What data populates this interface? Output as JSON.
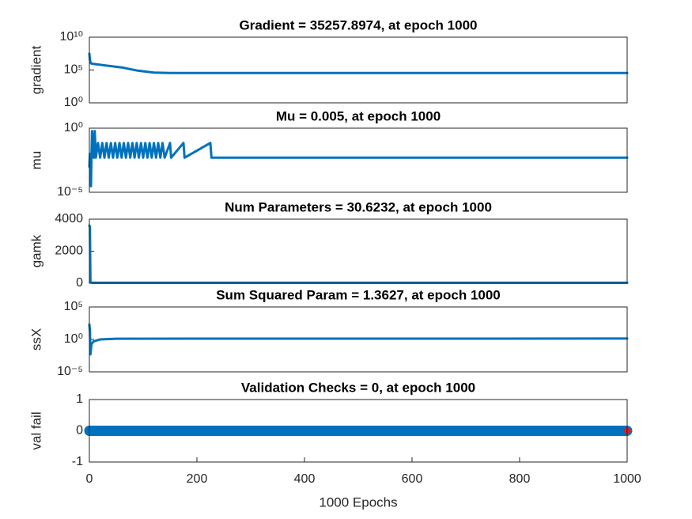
{
  "chart_data": [
    {
      "type": "line",
      "title": "Gradient = 35257.8974, at epoch 1000",
      "ylabel": "gradient",
      "yscale": "log",
      "color": "#0072bd",
      "xlim": [
        0,
        1000
      ],
      "ylim": [
        1,
        10000000000
      ],
      "yticks": [
        {
          "value": 1,
          "label": "10⁰"
        },
        {
          "value": 100000,
          "label": "10⁵"
        },
        {
          "value": 10000000000,
          "label": "10¹⁰"
        }
      ],
      "x": [
        0,
        1,
        3,
        10,
        30,
        60,
        90,
        120,
        150,
        1000
      ],
      "values": [
        30000000,
        3000000,
        1000000,
        800000,
        500000,
        250000,
        80000,
        40000,
        35500,
        35257.8974
      ]
    },
    {
      "type": "line",
      "title": "Mu = 0.005, at epoch 1000",
      "ylabel": "mu",
      "yscale": "log",
      "color": "#0072bd",
      "xlim": [
        0,
        1000
      ],
      "ylim": [
        1e-05,
        1
      ],
      "yticks": [
        {
          "value": 1e-05,
          "label": "10⁻⁵"
        },
        {
          "value": 1,
          "label": "10⁰"
        }
      ],
      "x": [
        0,
        1,
        3,
        4,
        5,
        8,
        10,
        12,
        16,
        20,
        24,
        28,
        32,
        36,
        40,
        44,
        48,
        52,
        56,
        60,
        64,
        68,
        72,
        76,
        80,
        84,
        88,
        92,
        96,
        100,
        104,
        108,
        112,
        116,
        120,
        124,
        128,
        132,
        136,
        140,
        150,
        152,
        175,
        177,
        225,
        227,
        1000
      ],
      "values": [
        0.001,
        0.01,
        3e-05,
        0.01,
        0.6,
        0.005,
        0.6,
        0.005,
        0.07,
        0.005,
        0.07,
        0.005,
        0.07,
        0.005,
        0.07,
        0.005,
        0.07,
        0.005,
        0.07,
        0.005,
        0.07,
        0.005,
        0.07,
        0.005,
        0.07,
        0.005,
        0.07,
        0.005,
        0.07,
        0.005,
        0.07,
        0.005,
        0.07,
        0.005,
        0.07,
        0.005,
        0.07,
        0.005,
        0.07,
        0.005,
        0.07,
        0.005,
        0.07,
        0.005,
        0.07,
        0.005,
        0.005
      ]
    },
    {
      "type": "line",
      "title": "Num Parameters = 30.6232, at epoch 1000",
      "ylabel": "gamk",
      "color": "#0072bd",
      "xlim": [
        0,
        1000
      ],
      "ylim": [
        0,
        4000
      ],
      "yticks": [
        0,
        2000,
        4000
      ],
      "x": [
        0,
        1,
        2,
        5,
        1000
      ],
      "values": [
        3600,
        3500,
        50,
        30.6,
        30.6232
      ]
    },
    {
      "type": "line",
      "title": "Sum Squared Param = 1.3627, at epoch 1000",
      "ylabel": "ssX",
      "yscale": "log",
      "color": "#0072bd",
      "xlim": [
        0,
        1000
      ],
      "ylim": [
        1e-05,
        100000
      ],
      "yticks": [
        {
          "value": 1e-05,
          "label": "10⁻⁵"
        },
        {
          "value": 1,
          "label": "10⁰"
        },
        {
          "value": 100000,
          "label": "10⁵"
        }
      ],
      "x": [
        0,
        1,
        2,
        4,
        8,
        20,
        50,
        1000
      ],
      "values": [
        200,
        20,
        0.005,
        0.2,
        0.5,
        1,
        1.3,
        1.3627
      ]
    },
    {
      "type": "line",
      "title": "Validation Checks = 0, at epoch 1000",
      "ylabel": "val fail",
      "color": "#0072bd",
      "end_marker_color": "#e31a1c",
      "xlim": [
        0,
        1000
      ],
      "ylim": [
        -1,
        1
      ],
      "yticks": [
        -1,
        0,
        1
      ],
      "xticks": [
        0,
        200,
        400,
        600,
        800,
        1000
      ],
      "xlabel": "1000 Epochs",
      "x": [
        0,
        1000
      ],
      "values": [
        0,
        0
      ]
    }
  ]
}
